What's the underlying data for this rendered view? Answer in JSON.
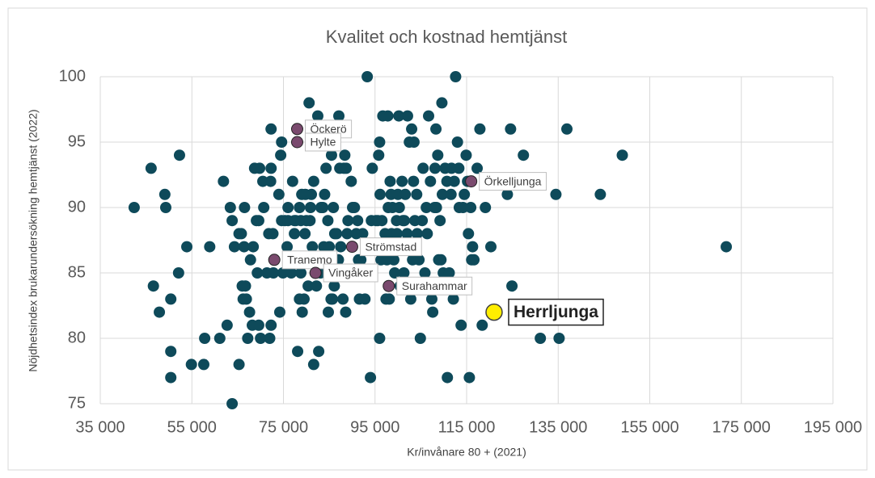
{
  "chart_data": {
    "type": "scatter",
    "title": "Kvalitet och kostnad hemtjänst",
    "xlabel": "Kr/invånare 80 + (2021)",
    "ylabel": "Nöjdhetsindex brukarundersökning hemtjänst (2022)",
    "xlim": [
      35000,
      195000
    ],
    "xticks": [
      {
        "value": 35000,
        "label": "35 000"
      },
      {
        "value": 55000,
        "label": "55 000"
      },
      {
        "value": 75000,
        "label": "75 000"
      },
      {
        "value": 95000,
        "label": "95 000"
      },
      {
        "value": 115000,
        "label": "115 000"
      },
      {
        "value": 135000,
        "label": "135 000"
      },
      {
        "value": 155000,
        "label": "155 000"
      },
      {
        "value": 175000,
        "label": "175 000"
      },
      {
        "value": 195000,
        "label": "195 000"
      }
    ],
    "ylim": [
      75,
      100
    ],
    "yticks": [
      75,
      80,
      85,
      90,
      95,
      100
    ],
    "grid": true,
    "color": "#0e4a5a",
    "x": [
      42400,
      46100,
      46600,
      47900,
      49100,
      49300,
      50400,
      50400,
      50400,
      52100,
      52300,
      53900,
      54900,
      57600,
      57800,
      58900,
      61100,
      61900,
      62700,
      63400,
      63800,
      63800,
      64300,
      65300,
      65300,
      65800,
      66000,
      66200,
      66500,
      66400,
      66700,
      66900,
      67200,
      67600,
      67800,
      68200,
      68400,
      68700,
      69100,
      69300,
      69600,
      69600,
      69800,
      70000,
      70500,
      70700,
      71400,
      71800,
      72000,
      72200,
      72300,
      72300,
      72300,
      72700,
      72800,
      74000,
      74200,
      74400,
      74600,
      74600,
      74900,
      75300,
      75800,
      76000,
      76000,
      76700,
      77000,
      77400,
      77400,
      77700,
      78100,
      78500,
      78500,
      78800,
      78800,
      79000,
      79100,
      79500,
      79700,
      79800,
      80000,
      80400,
      80600,
      80800,
      80900,
      81100,
      81300,
      81600,
      81600,
      82000,
      82200,
      82500,
      82700,
      83100,
      83200,
      83600,
      83800,
      84000,
      84200,
      84300,
      84500,
      84700,
      84800,
      85000,
      85200,
      85400,
      85500,
      85700,
      85900,
      86100,
      86200,
      86600,
      87000,
      87100,
      87300,
      87500,
      88000,
      88200,
      88400,
      88600,
      88700,
      88900,
      89100,
      89600,
      89800,
      90100,
      90500,
      90900,
      91200,
      91400,
      91600,
      91900,
      92300,
      92800,
      93300,
      93700,
      94000,
      94200,
      94400,
      94700,
      95200,
      95600,
      95800,
      96000,
      96000,
      96100,
      96300,
      96500,
      96700,
      97200,
      97400,
      97600,
      97800,
      97900,
      98100,
      98300,
      98500,
      98600,
      98800,
      99100,
      99300,
      99700,
      99800,
      100000,
      100200,
      100300,
      100500,
      100900,
      101100,
      101300,
      101400,
      101600,
      102000,
      102100,
      102500,
      102800,
      103000,
      103200,
      103400,
      103500,
      103700,
      104100,
      104200,
      104600,
      104900,
      105300,
      105500,
      105900,
      106200,
      106400,
      106700,
      107100,
      107400,
      107600,
      108000,
      108100,
      108300,
      108400,
      108700,
      108900,
      109200,
      109400,
      109600,
      109700,
      109900,
      110300,
      110500,
      110700,
      110800,
      111200,
      111600,
      111700,
      112100,
      112300,
      112600,
      113000,
      113300,
      113400,
      113800,
      114200,
      114500,
      114900,
      115200,
      115400,
      115600,
      115900,
      116100,
      116300,
      116600,
      117300,
      117900,
      118400,
      119100,
      120300,
      123900,
      124600,
      124900,
      127400,
      131100,
      134500,
      135200,
      136900,
      144200,
      149000,
      171700
    ],
    "values": [
      90,
      93,
      84,
      82,
      91,
      90,
      83,
      79,
      77,
      85,
      94,
      87,
      78,
      78,
      80,
      87,
      80,
      92,
      81,
      90,
      89,
      75,
      87,
      78,
      88,
      88,
      84,
      83,
      90,
      87,
      84,
      83,
      80,
      82,
      86,
      81,
      87,
      93,
      89,
      85,
      89,
      81,
      93,
      80,
      92,
      90,
      85,
      88,
      80,
      92,
      96,
      81,
      93,
      88,
      85,
      91,
      82,
      94,
      89,
      95,
      85,
      89,
      87,
      90,
      89,
      85,
      92,
      88,
      89,
      89,
      79,
      83,
      90,
      89,
      85,
      91,
      82,
      83,
      88,
      91,
      89,
      84,
      98,
      89,
      90,
      91,
      87,
      92,
      78,
      86,
      84,
      97,
      79,
      85,
      90,
      90,
      87,
      91,
      96,
      93,
      86,
      89,
      82,
      87,
      95,
      83,
      94,
      83,
      90,
      84,
      88,
      88,
      86,
      97,
      93,
      87,
      83,
      93,
      94,
      82,
      93,
      88,
      89,
      85,
      92,
      90,
      90,
      88,
      89,
      86,
      83,
      86,
      88,
      83,
      100,
      85,
      77,
      89,
      93,
      87,
      89,
      89,
      94,
      95,
      80,
      91,
      86,
      89,
      97,
      88,
      83,
      86,
      97,
      90,
      83,
      92,
      91,
      88,
      90,
      86,
      85,
      89,
      88,
      91,
      97,
      90,
      84,
      92,
      89,
      85,
      89,
      91,
      88,
      97,
      95,
      83,
      96,
      86,
      92,
      95,
      89,
      91,
      88,
      86,
      80,
      89,
      93,
      85,
      90,
      88,
      97,
      92,
      83,
      82,
      90,
      93,
      96,
      90,
      94,
      86,
      89,
      86,
      98,
      91,
      85,
      93,
      84,
      92,
      77,
      85,
      91,
      93,
      83,
      92,
      100,
      95,
      93,
      90,
      81,
      90,
      91,
      94,
      92,
      88,
      77,
      90,
      86,
      87,
      86,
      93,
      96,
      81,
      90,
      87,
      91,
      96,
      84,
      94,
      80,
      91,
      80,
      96,
      91,
      94,
      87
    ],
    "highlights": [
      {
        "label": "Öckerö",
        "x": 78000,
        "y": 96,
        "color": "#7a4a6e"
      },
      {
        "label": "Hylte",
        "x": 78000,
        "y": 95,
        "color": "#7a4a6e"
      },
      {
        "label": "Örkelljunga",
        "x": 116000,
        "y": 92,
        "color": "#7a4a6e"
      },
      {
        "label": "Strömstad",
        "x": 90000,
        "y": 87,
        "color": "#7a4a6e"
      },
      {
        "label": "Tranemo",
        "x": 73000,
        "y": 86,
        "color": "#7a4a6e"
      },
      {
        "label": "Vingåker",
        "x": 82000,
        "y": 85,
        "color": "#7a4a6e"
      },
      {
        "label": "Surahammar",
        "x": 98000,
        "y": 84,
        "color": "#7a4a6e"
      },
      {
        "label": "Herrljunga",
        "x": 121000,
        "y": 82,
        "color": "#ffee00",
        "bold": true
      }
    ]
  }
}
